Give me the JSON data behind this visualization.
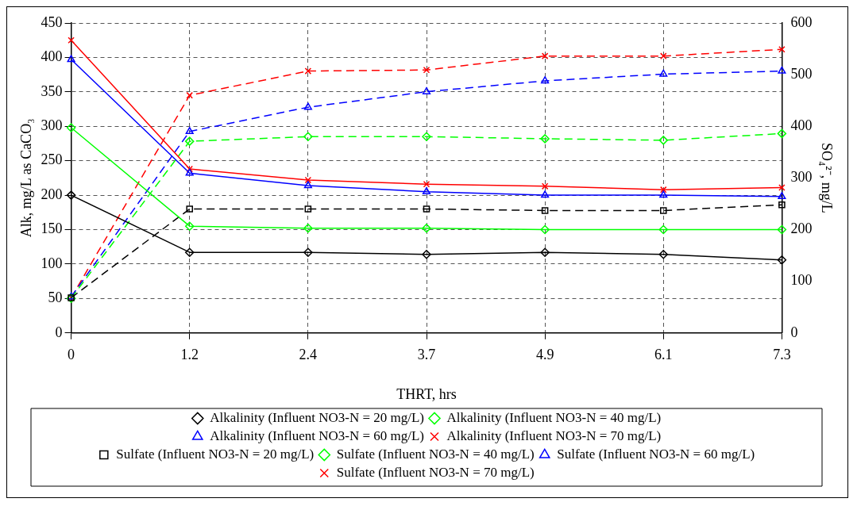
{
  "chart_data": {
    "type": "line",
    "xlabel": "THRT, hrs",
    "ylabel": "Alk, mg/L as CaCO₃",
    "y2label": "SO₄²⁻, mg/L",
    "categories": [
      "0",
      "1.2",
      "2.4",
      "3.7",
      "4.9",
      "6.1",
      "7.3"
    ],
    "ylim": [
      0,
      450
    ],
    "yticks": [
      0,
      50,
      100,
      150,
      200,
      250,
      300,
      350,
      400,
      450
    ],
    "y2lim": [
      0,
      600
    ],
    "y2ticks": [
      0,
      100,
      200,
      300,
      400,
      500,
      600
    ],
    "grid": true,
    "legend": "bottom",
    "series": [
      {
        "name": "Alkalinity (Influent NO3-N = 20 mg/L)",
        "color": "#000000",
        "marker": "diamond",
        "line_style": "solid",
        "values": [
          200,
          117,
          117,
          114,
          117,
          114,
          106
        ]
      },
      {
        "name": "Alkalinity (Influent NO3-N = 40 mg/L)",
        "color": "#00ff00",
        "marker": "diamond",
        "line_style": "solid",
        "values": [
          298,
          155,
          152,
          152,
          150,
          150,
          150
        ]
      },
      {
        "name": "Alkalinity (Influent NO3-N = 60 mg/L)",
        "color": "#0000ff",
        "marker": "triangle",
        "line_style": "solid",
        "values": [
          397,
          232,
          214,
          205,
          200,
          200,
          198
        ]
      },
      {
        "name": "Alkalinity (Influent NO3-N = 70 mg/L)",
        "color": "#ff0000",
        "marker": "cross",
        "line_style": "solid",
        "values": [
          425,
          238,
          222,
          216,
          213,
          208,
          211
        ]
      },
      {
        "name": "Sulfate (Influent NO3-N = 20 mg/L)",
        "color": "#000000",
        "marker": "square",
        "line_style": "dashed",
        "axis": "y2",
        "values": [
          68,
          240,
          240,
          240,
          237,
          237,
          248
        ]
      },
      {
        "name": "Sulfate (Influent NO3-N = 40 mg/L)",
        "color": "#00ff00",
        "marker": "diamond",
        "line_style": "dashed",
        "axis": "y2",
        "values": [
          67,
          371,
          380,
          380,
          376,
          373,
          386
        ]
      },
      {
        "name": "Sulfate (Influent NO3-N = 60 mg/L)",
        "color": "#0000ff",
        "marker": "triangle",
        "line_style": "dashed",
        "axis": "y2",
        "values": [
          70,
          390,
          437,
          467,
          488,
          501,
          507
        ]
      },
      {
        "name": "Sulfate (Influent NO3-N = 70 mg/L)",
        "color": "#ff0000",
        "marker": "cross",
        "line_style": "dashed",
        "axis": "y2",
        "values": [
          68,
          460,
          507,
          509,
          536,
          536,
          549
        ]
      }
    ]
  }
}
